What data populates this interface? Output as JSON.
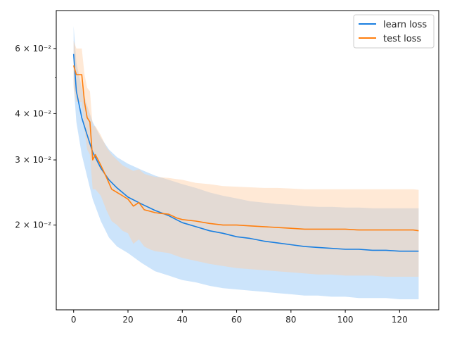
{
  "chart_data": {
    "type": "line",
    "title": "",
    "xlabel": "",
    "ylabel": "",
    "xlim": [
      -6.4,
      134.4
    ],
    "ylim": [
      0.0118,
      0.076
    ],
    "yscale": "log",
    "grid": false,
    "legend_position": "top-right",
    "x_ticks": [
      0,
      20,
      40,
      60,
      80,
      100,
      120
    ],
    "y_ticks": [
      {
        "value": 0.02,
        "label": "2 × 10⁻²"
      },
      {
        "value": 0.03,
        "label": "3 × 10⁻²"
      },
      {
        "value": 0.04,
        "label": "4 × 10⁻²"
      },
      {
        "value": 0.06,
        "label": "6 × 10⁻²"
      }
    ],
    "y_minor_ticks": [
      0.05
    ],
    "series": [
      {
        "name": "learn loss",
        "color": "#1a7fe0",
        "band_color": "#8ec4f7",
        "points": [
          [
            0,
            0.058
          ],
          [
            1,
            0.046
          ],
          [
            3,
            0.039
          ],
          [
            5,
            0.035
          ],
          [
            7,
            0.0315
          ],
          [
            10,
            0.0285
          ],
          [
            13,
            0.0265
          ],
          [
            16,
            0.0252
          ],
          [
            20,
            0.0238
          ],
          [
            25,
            0.0228
          ],
          [
            30,
            0.0219
          ],
          [
            35,
            0.0212
          ],
          [
            40,
            0.0203
          ],
          [
            45,
            0.0198
          ],
          [
            50,
            0.0193
          ],
          [
            55,
            0.019
          ],
          [
            60,
            0.0186
          ],
          [
            65,
            0.0184
          ],
          [
            70,
            0.0181
          ],
          [
            75,
            0.0179
          ],
          [
            80,
            0.0177
          ],
          [
            85,
            0.0175
          ],
          [
            90,
            0.0174
          ],
          [
            95,
            0.0173
          ],
          [
            100,
            0.0172
          ],
          [
            105,
            0.0172
          ],
          [
            110,
            0.0171
          ],
          [
            115,
            0.0171
          ],
          [
            120,
            0.017
          ],
          [
            125,
            0.017
          ],
          [
            127,
            0.017
          ]
        ],
        "upper": [
          [
            0,
            0.069
          ],
          [
            1,
            0.055
          ],
          [
            3,
            0.047
          ],
          [
            5,
            0.042
          ],
          [
            7,
            0.038
          ],
          [
            10,
            0.0345
          ],
          [
            13,
            0.032
          ],
          [
            16,
            0.0305
          ],
          [
            20,
            0.0293
          ],
          [
            25,
            0.0282
          ],
          [
            30,
            0.0272
          ],
          [
            35,
            0.0265
          ],
          [
            40,
            0.0258
          ],
          [
            45,
            0.0252
          ],
          [
            50,
            0.0245
          ],
          [
            55,
            0.024
          ],
          [
            60,
            0.0236
          ],
          [
            65,
            0.0232
          ],
          [
            70,
            0.023
          ],
          [
            75,
            0.0228
          ],
          [
            80,
            0.0227
          ],
          [
            85,
            0.0225
          ],
          [
            90,
            0.0224
          ],
          [
            95,
            0.0224
          ],
          [
            100,
            0.0223
          ],
          [
            105,
            0.0223
          ],
          [
            110,
            0.0222
          ],
          [
            115,
            0.0222
          ],
          [
            120,
            0.0222
          ],
          [
            125,
            0.0222
          ],
          [
            127,
            0.0222
          ]
        ],
        "lower": [
          [
            0,
            0.048
          ],
          [
            1,
            0.038
          ],
          [
            3,
            0.031
          ],
          [
            5,
            0.027
          ],
          [
            7,
            0.0235
          ],
          [
            10,
            0.0205
          ],
          [
            13,
            0.0185
          ],
          [
            16,
            0.0175
          ],
          [
            20,
            0.0168
          ],
          [
            25,
            0.0158
          ],
          [
            30,
            0.015
          ],
          [
            35,
            0.0146
          ],
          [
            40,
            0.0142
          ],
          [
            45,
            0.014
          ],
          [
            50,
            0.0137
          ],
          [
            55,
            0.0135
          ],
          [
            60,
            0.0134
          ],
          [
            65,
            0.0133
          ],
          [
            70,
            0.0132
          ],
          [
            75,
            0.0131
          ],
          [
            80,
            0.013
          ],
          [
            85,
            0.0129
          ],
          [
            90,
            0.0129
          ],
          [
            95,
            0.0128
          ],
          [
            100,
            0.0128
          ],
          [
            105,
            0.0127
          ],
          [
            110,
            0.0127
          ],
          [
            115,
            0.0127
          ],
          [
            120,
            0.0126
          ],
          [
            125,
            0.0126
          ],
          [
            127,
            0.0126
          ]
        ]
      },
      {
        "name": "test loss",
        "color": "#ff7f0e",
        "band_color": "#ffcfa3",
        "points": [
          [
            0,
            0.054
          ],
          [
            1,
            0.051
          ],
          [
            3,
            0.051
          ],
          [
            4,
            0.043
          ],
          [
            5,
            0.039
          ],
          [
            6,
            0.038
          ],
          [
            7,
            0.03
          ],
          [
            8,
            0.031
          ],
          [
            10,
            0.029
          ],
          [
            12,
            0.027
          ],
          [
            14,
            0.025
          ],
          [
            16,
            0.0245
          ],
          [
            18,
            0.024
          ],
          [
            20,
            0.0235
          ],
          [
            22,
            0.0225
          ],
          [
            24,
            0.023
          ],
          [
            26,
            0.022
          ],
          [
            28,
            0.0218
          ],
          [
            30,
            0.0216
          ],
          [
            32,
            0.0215
          ],
          [
            35,
            0.0214
          ],
          [
            38,
            0.0209
          ],
          [
            40,
            0.0207
          ],
          [
            45,
            0.0205
          ],
          [
            50,
            0.0202
          ],
          [
            55,
            0.02
          ],
          [
            60,
            0.02
          ],
          [
            65,
            0.0199
          ],
          [
            70,
            0.0198
          ],
          [
            75,
            0.0197
          ],
          [
            80,
            0.0196
          ],
          [
            85,
            0.0195
          ],
          [
            90,
            0.0195
          ],
          [
            95,
            0.0195
          ],
          [
            100,
            0.0195
          ],
          [
            105,
            0.0194
          ],
          [
            110,
            0.0194
          ],
          [
            115,
            0.0194
          ],
          [
            120,
            0.0194
          ],
          [
            125,
            0.0194
          ],
          [
            127,
            0.0193
          ]
        ],
        "upper": [
          [
            0,
            0.063
          ],
          [
            1,
            0.06
          ],
          [
            3,
            0.06
          ],
          [
            4,
            0.051
          ],
          [
            5,
            0.047
          ],
          [
            6,
            0.046
          ],
          [
            7,
            0.037
          ],
          [
            8,
            0.037
          ],
          [
            10,
            0.035
          ],
          [
            12,
            0.0325
          ],
          [
            14,
            0.031
          ],
          [
            16,
            0.03
          ],
          [
            18,
            0.029
          ],
          [
            20,
            0.0285
          ],
          [
            22,
            0.028
          ],
          [
            24,
            0.0283
          ],
          [
            26,
            0.0275
          ],
          [
            28,
            0.0272
          ],
          [
            30,
            0.027
          ],
          [
            35,
            0.0268
          ],
          [
            40,
            0.0265
          ],
          [
            45,
            0.026
          ],
          [
            50,
            0.0258
          ],
          [
            55,
            0.0255
          ],
          [
            60,
            0.0254
          ],
          [
            65,
            0.0253
          ],
          [
            70,
            0.0252
          ],
          [
            75,
            0.0252
          ],
          [
            80,
            0.0251
          ],
          [
            85,
            0.025
          ],
          [
            90,
            0.025
          ],
          [
            95,
            0.025
          ],
          [
            100,
            0.025
          ],
          [
            105,
            0.025
          ],
          [
            110,
            0.025
          ],
          [
            115,
            0.025
          ],
          [
            120,
            0.025
          ],
          [
            125,
            0.025
          ],
          [
            127,
            0.0249
          ]
        ],
        "lower": [
          [
            0,
            0.047
          ],
          [
            1,
            0.043
          ],
          [
            3,
            0.043
          ],
          [
            4,
            0.036
          ],
          [
            5,
            0.032
          ],
          [
            6,
            0.031
          ],
          [
            7,
            0.025
          ],
          [
            8,
            0.025
          ],
          [
            10,
            0.024
          ],
          [
            12,
            0.022
          ],
          [
            14,
            0.0205
          ],
          [
            16,
            0.02
          ],
          [
            18,
            0.0193
          ],
          [
            20,
            0.019
          ],
          [
            22,
            0.0178
          ],
          [
            24,
            0.0183
          ],
          [
            26,
            0.0175
          ],
          [
            28,
            0.0172
          ],
          [
            30,
            0.017
          ],
          [
            35,
            0.0168
          ],
          [
            40,
            0.0163
          ],
          [
            45,
            0.016
          ],
          [
            50,
            0.0157
          ],
          [
            55,
            0.0155
          ],
          [
            60,
            0.0153
          ],
          [
            65,
            0.0152
          ],
          [
            70,
            0.0151
          ],
          [
            75,
            0.015
          ],
          [
            80,
            0.0149
          ],
          [
            85,
            0.0148
          ],
          [
            90,
            0.0147
          ],
          [
            95,
            0.0147
          ],
          [
            100,
            0.0146
          ],
          [
            105,
            0.0146
          ],
          [
            110,
            0.0146
          ],
          [
            115,
            0.0145
          ],
          [
            120,
            0.0145
          ],
          [
            125,
            0.0145
          ],
          [
            127,
            0.0145
          ]
        ]
      }
    ]
  }
}
